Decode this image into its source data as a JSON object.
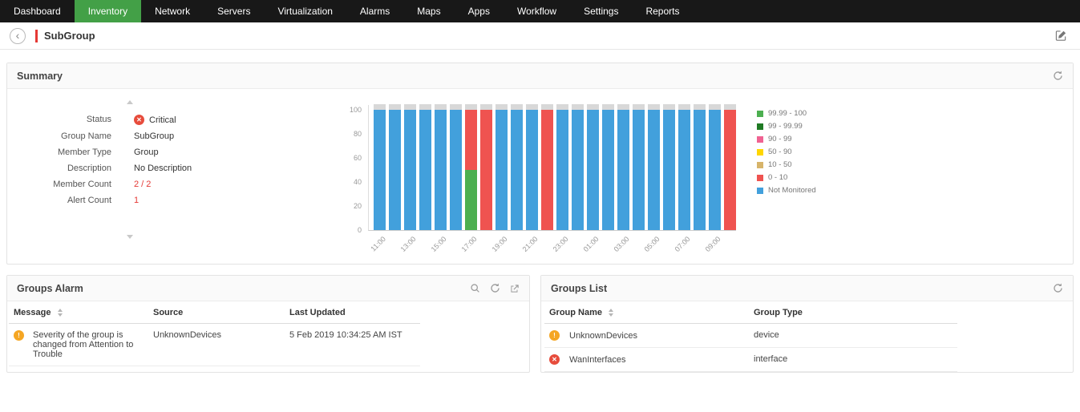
{
  "nav": {
    "active_color": "#43a047",
    "items": [
      {
        "label": "Dashboard",
        "active": false
      },
      {
        "label": "Inventory",
        "active": true
      },
      {
        "label": "Network",
        "active": false
      },
      {
        "label": "Servers",
        "active": false
      },
      {
        "label": "Virtualization",
        "active": false
      },
      {
        "label": "Alarms",
        "active": false
      },
      {
        "label": "Maps",
        "active": false
      },
      {
        "label": "Apps",
        "active": false
      },
      {
        "label": "Workflow",
        "active": false
      },
      {
        "label": "Settings",
        "active": false
      },
      {
        "label": "Reports",
        "active": false
      }
    ]
  },
  "header": {
    "title": "SubGroup"
  },
  "colors": {
    "accent_red": "#e53935",
    "nav_active_green": "#43a047",
    "critical_red": "#e74c3c",
    "warning_orange": "#f5a623",
    "bar_cap_gray": "#d8d8d8"
  },
  "summary": {
    "title": "Summary",
    "fields": [
      {
        "label": "Status",
        "value": "Critical",
        "type": "critical",
        "highlight": false
      },
      {
        "label": "Group Name",
        "value": "SubGroup",
        "highlight": false
      },
      {
        "label": "Member Type",
        "value": "Group",
        "highlight": false
      },
      {
        "label": "Description",
        "value": "No Description",
        "highlight": false
      },
      {
        "label": "Member Count",
        "value": "2 / 2",
        "highlight": true
      },
      {
        "label": "Alert Count",
        "value": "1",
        "highlight": true
      }
    ]
  },
  "chart_data": {
    "type": "bar",
    "stacked": true,
    "title": "",
    "xlabel": "",
    "ylabel": "",
    "ylim": [
      0,
      100
    ],
    "yticks": [
      0,
      20,
      40,
      60,
      80,
      100
    ],
    "grid": false,
    "legend_position": "right",
    "xtick_labels": [
      "11:00",
      "13:00",
      "15:00",
      "17:00",
      "19:00",
      "21:00",
      "23:00",
      "01:00",
      "03:00",
      "05:00",
      "07:00",
      "09:00"
    ],
    "legend": [
      {
        "label": "99.99 - 100",
        "color": "#4caf50"
      },
      {
        "label": "99 - 99.99",
        "color": "#1f7a24"
      },
      {
        "label": "90 - 99",
        "color": "#f06292"
      },
      {
        "label": "50 - 90",
        "color": "#ffd600"
      },
      {
        "label": "10 - 50",
        "color": "#d7b46a"
      },
      {
        "label": "0 - 10",
        "color": "#ef5350"
      },
      {
        "label": "Not Monitored",
        "color": "#42a0dc"
      }
    ],
    "bars": [
      {
        "x": "11:00",
        "segments": [
          {
            "band": "Not Monitored",
            "value": 100
          }
        ]
      },
      {
        "x": "12:00",
        "segments": [
          {
            "band": "Not Monitored",
            "value": 100
          }
        ]
      },
      {
        "x": "13:00",
        "segments": [
          {
            "band": "Not Monitored",
            "value": 100
          }
        ]
      },
      {
        "x": "14:00",
        "segments": [
          {
            "band": "Not Monitored",
            "value": 100
          }
        ]
      },
      {
        "x": "15:00",
        "segments": [
          {
            "band": "Not Monitored",
            "value": 100
          }
        ]
      },
      {
        "x": "16:00",
        "segments": [
          {
            "band": "Not Monitored",
            "value": 100
          }
        ]
      },
      {
        "x": "17:00",
        "segments": [
          {
            "band": "99.99 - 100",
            "value": 50
          },
          {
            "band": "0 - 10",
            "value": 50
          }
        ]
      },
      {
        "x": "18:00",
        "segments": [
          {
            "band": "0 - 10",
            "value": 100
          }
        ]
      },
      {
        "x": "19:00",
        "segments": [
          {
            "band": "Not Monitored",
            "value": 100
          }
        ]
      },
      {
        "x": "20:00",
        "segments": [
          {
            "band": "Not Monitored",
            "value": 100
          }
        ]
      },
      {
        "x": "21:00",
        "segments": [
          {
            "band": "Not Monitored",
            "value": 100
          }
        ]
      },
      {
        "x": "22:00",
        "segments": [
          {
            "band": "0 - 10",
            "value": 100
          }
        ]
      },
      {
        "x": "23:00",
        "segments": [
          {
            "band": "Not Monitored",
            "value": 100
          }
        ]
      },
      {
        "x": "00:00",
        "segments": [
          {
            "band": "Not Monitored",
            "value": 100
          }
        ]
      },
      {
        "x": "01:00",
        "segments": [
          {
            "band": "Not Monitored",
            "value": 100
          }
        ]
      },
      {
        "x": "02:00",
        "segments": [
          {
            "band": "Not Monitored",
            "value": 100
          }
        ]
      },
      {
        "x": "03:00",
        "segments": [
          {
            "band": "Not Monitored",
            "value": 100
          }
        ]
      },
      {
        "x": "04:00",
        "segments": [
          {
            "band": "Not Monitored",
            "value": 100
          }
        ]
      },
      {
        "x": "05:00",
        "segments": [
          {
            "band": "Not Monitored",
            "value": 100
          }
        ]
      },
      {
        "x": "06:00",
        "segments": [
          {
            "band": "Not Monitored",
            "value": 100
          }
        ]
      },
      {
        "x": "07:00",
        "segments": [
          {
            "band": "Not Monitored",
            "value": 100
          }
        ]
      },
      {
        "x": "08:00",
        "segments": [
          {
            "band": "Not Monitored",
            "value": 100
          }
        ]
      },
      {
        "x": "09:00",
        "segments": [
          {
            "band": "Not Monitored",
            "value": 100
          }
        ]
      },
      {
        "x": "10:00",
        "segments": [
          {
            "band": "0 - 10",
            "value": 100
          }
        ]
      }
    ]
  },
  "groups_alarm": {
    "title": "Groups Alarm",
    "columns": [
      "Message",
      "Source",
      "Last Updated"
    ],
    "rows": [
      {
        "severity": "warning",
        "message": "Severity of the group is changed from Attention to Trouble",
        "source": "UnknownDevices",
        "last_updated": "5 Feb 2019 10:34:25 AM IST"
      }
    ]
  },
  "groups_list": {
    "title": "Groups List",
    "columns": [
      "Group Name",
      "Group Type"
    ],
    "rows": [
      {
        "severity": "warning",
        "name": "UnknownDevices",
        "type": "device"
      },
      {
        "severity": "critical",
        "name": "WanInterfaces",
        "type": "interface"
      }
    ]
  }
}
